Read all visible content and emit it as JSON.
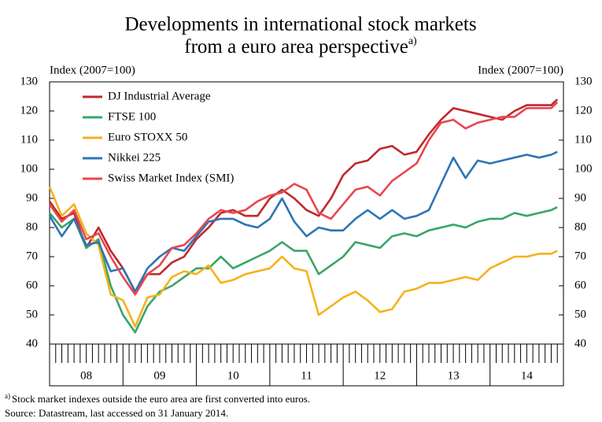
{
  "chart_data": {
    "type": "line",
    "title": [
      "Developments in international stock markets",
      "from a euro area perspective"
    ],
    "title_note": "a)",
    "y_label": "Index (2007=100)",
    "y2_label": "Index (2007=100)",
    "x": [
      0,
      2,
      4,
      6,
      8,
      10,
      12,
      14,
      16,
      18,
      20,
      22,
      24,
      26,
      28,
      30,
      32,
      34,
      36,
      38,
      40,
      42,
      44,
      46,
      48,
      50,
      52,
      54,
      56,
      58,
      60,
      62,
      64,
      66,
      68,
      70,
      72,
      74,
      76,
      78,
      80,
      82,
      83
    ],
    "xlim": [
      0,
      84
    ],
    "xticks": [
      0,
      1,
      2,
      3,
      4,
      5,
      6,
      7,
      8,
      9,
      10,
      11,
      12,
      13,
      14,
      15,
      16,
      17,
      18,
      19,
      20,
      21,
      22,
      23,
      24,
      25,
      26,
      27,
      28,
      29,
      30,
      31,
      32,
      33,
      34,
      35,
      36,
      37,
      38,
      39,
      40,
      41,
      42,
      43,
      44,
      45,
      46,
      47,
      48,
      49,
      50,
      51,
      52,
      53,
      54,
      55,
      56,
      57,
      58,
      59,
      60,
      61,
      62,
      63,
      64,
      65,
      66,
      67,
      68,
      69,
      70,
      71,
      72,
      73,
      74,
      75,
      76,
      77,
      78,
      79,
      80,
      81,
      82,
      83,
      84
    ],
    "year_labels": [
      {
        "value": 6,
        "label": "08"
      },
      {
        "value": 18,
        "label": "09"
      },
      {
        "value": 30,
        "label": "10"
      },
      {
        "value": 42,
        "label": "11"
      },
      {
        "value": 54,
        "label": "12"
      },
      {
        "value": 66,
        "label": "13"
      },
      {
        "value": 78,
        "label": "14"
      }
    ],
    "ylim": [
      40,
      130
    ],
    "yticks": [
      40,
      50,
      60,
      70,
      80,
      90,
      100,
      110,
      120,
      130
    ],
    "y2lim": [
      40,
      130
    ],
    "y2ticks": [
      40,
      50,
      60,
      70,
      80,
      90,
      100,
      110,
      120,
      130
    ],
    "series": [
      {
        "name": "DJ Industrial Average",
        "color": "#c0282d",
        "values": [
          89,
          83,
          85,
          73,
          80,
          72,
          66,
          58,
          64,
          64,
          68,
          70,
          76,
          80,
          85,
          86,
          84,
          84,
          90,
          93,
          90,
          86,
          84,
          90,
          98,
          102,
          103,
          107,
          108,
          105,
          106,
          112,
          117,
          121,
          120,
          119,
          118,
          117,
          120,
          122,
          122,
          122,
          124
        ]
      },
      {
        "name": "FTSE 100",
        "color": "#3aa566",
        "values": [
          85,
          80,
          83,
          73,
          76,
          60,
          50,
          44,
          53,
          58,
          60,
          63,
          66,
          66,
          70,
          66,
          68,
          70,
          72,
          75,
          72,
          72,
          64,
          67,
          70,
          75,
          74,
          73,
          77,
          78,
          77,
          79,
          80,
          81,
          80,
          82,
          83,
          83,
          85,
          84,
          85,
          86,
          87
        ]
      },
      {
        "name": "Euro STOXX 50",
        "color": "#f5b21c",
        "values": [
          94,
          84,
          88,
          78,
          74,
          57,
          55,
          46,
          56,
          57,
          63,
          65,
          64,
          67,
          61,
          62,
          64,
          65,
          66,
          70,
          66,
          65,
          50,
          53,
          56,
          58,
          55,
          51,
          52,
          58,
          59,
          61,
          61,
          62,
          63,
          62,
          66,
          68,
          70,
          70,
          71,
          71,
          72
        ]
      },
      {
        "name": "Nikkei 225",
        "color": "#2f74b5",
        "values": [
          84,
          77,
          83,
          74,
          75,
          65,
          66,
          58,
          66,
          70,
          73,
          72,
          77,
          82,
          83,
          83,
          81,
          80,
          83,
          90,
          82,
          77,
          80,
          79,
          79,
          83,
          86,
          83,
          86,
          83,
          84,
          86,
          95,
          104,
          97,
          103,
          102,
          103,
          104,
          105,
          104,
          105,
          106
        ]
      },
      {
        "name": "Swiss Market Index (SMI)",
        "color": "#e8474f",
        "values": [
          88,
          82,
          86,
          76,
          78,
          70,
          63,
          57,
          64,
          67,
          73,
          74,
          78,
          83,
          86,
          85,
          86,
          89,
          91,
          92,
          95,
          93,
          85,
          83,
          88,
          93,
          94,
          91,
          96,
          99,
          102,
          110,
          116,
          117,
          114,
          116,
          117,
          118,
          118,
          121,
          121,
          121,
          123
        ]
      }
    ],
    "footnote": {
      "marker": "a)",
      "text": "Stock market indexes outside the euro area are first converted into euros."
    },
    "source": "Source: Datastream, last accessed on 31 January 2014."
  }
}
